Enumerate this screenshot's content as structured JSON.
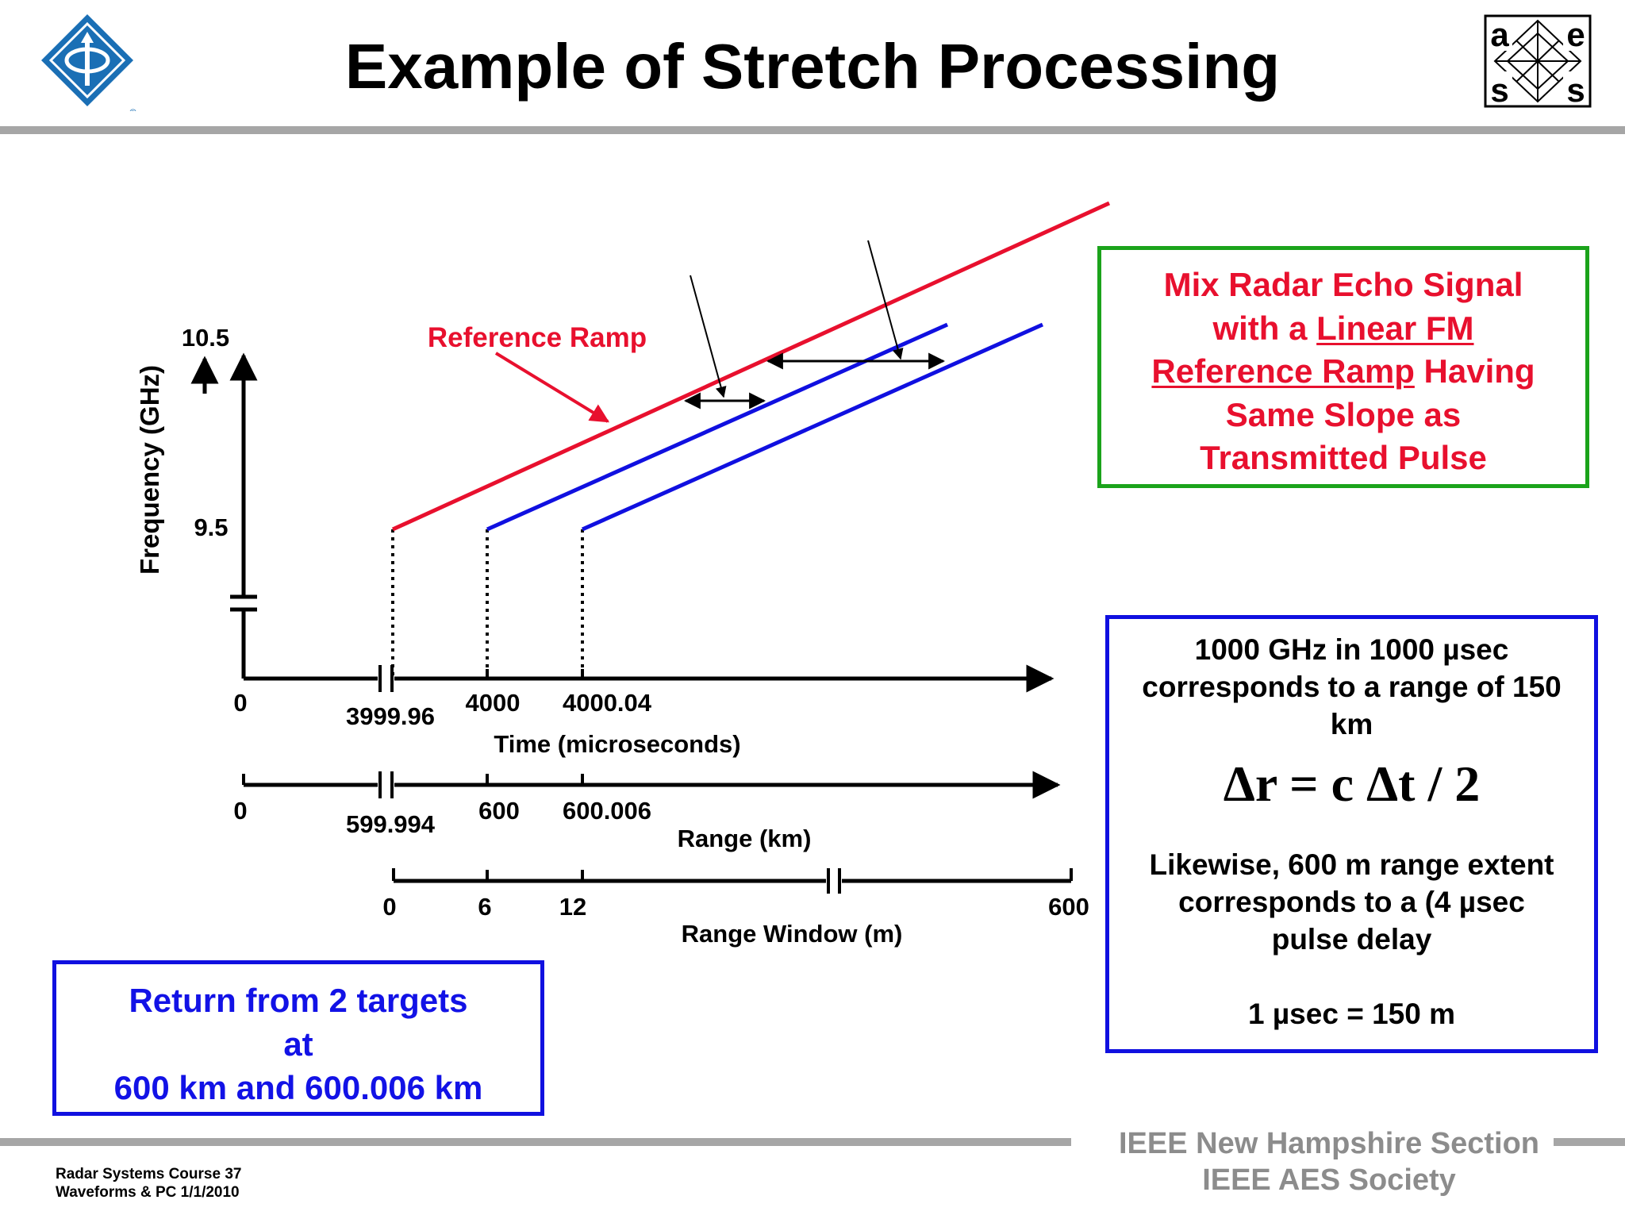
{
  "title": "Example of Stretch Processing",
  "logos": {
    "ieee": "ieee-logo",
    "aes": {
      "letters": [
        "a",
        "e",
        "s",
        "s"
      ]
    }
  },
  "diagram": {
    "freq_axis": {
      "label": "Frequency (GHz)",
      "ticks": [
        "10.5",
        "9.5"
      ]
    },
    "time_axis": {
      "label": "Time  (microseconds)",
      "ticks": [
        "0",
        "3999.96",
        "4000",
        "4000.04"
      ]
    },
    "range_axis": {
      "label": "Range  (km)",
      "ticks": [
        "0",
        "599.994",
        "600",
        "600.006"
      ]
    },
    "window_axis": {
      "label": "Range Window  (m)",
      "ticks": [
        "0",
        "6",
        "12",
        "600"
      ]
    },
    "reference_label": "Reference Ramp",
    "colors": {
      "reference": "#e8102e",
      "echo": "#1010e0"
    }
  },
  "boxes": {
    "mix": {
      "line1": "Mix Radar Echo Signal",
      "line2_pre": "with a ",
      "line2_u": "Linear FM",
      "line3_u": "Reference Ramp",
      "line3_post": " Having",
      "line4": "Same Slope as",
      "line5": "Transmitted Pulse"
    },
    "rate": {
      "line1": "1000 GHz in 1000 µsec",
      "line2": "corresponds to a range of 150",
      "line3": "km",
      "formula": "Δr = c Δt / 2",
      "line4": "Likewise, 600 m range extent",
      "line5": "corresponds to a (4 µsec",
      "line6": "pulse delay",
      "line7": "1 µsec = 150 m"
    },
    "return": {
      "line1": "Return from 2 targets",
      "line2": "at",
      "line3": "600 km and 600.006 km"
    }
  },
  "footer": {
    "course": "Radar Systems Course   37",
    "subtitle": "Waveforms & PC  1/1/2010",
    "section": "IEEE New Hampshire Section",
    "society": "IEEE AES Society"
  }
}
